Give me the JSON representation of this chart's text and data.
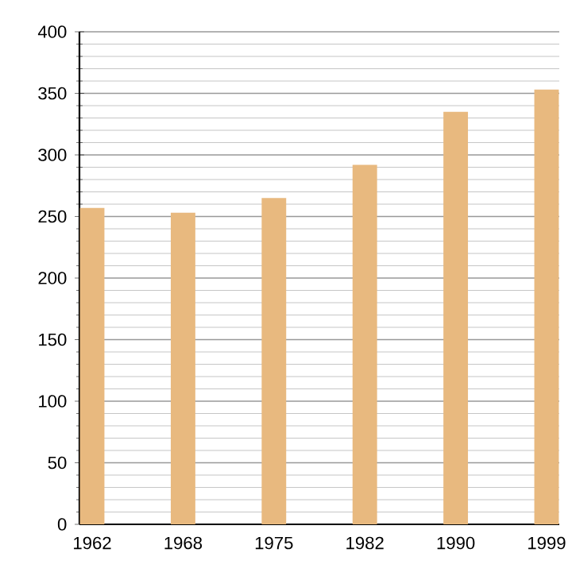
{
  "chart_data": {
    "type": "bar",
    "categories": [
      "1962",
      "1968",
      "1975",
      "1982",
      "1990",
      "1999"
    ],
    "values": [
      257,
      253,
      265,
      292,
      335,
      353
    ],
    "color": "#e8b97f",
    "ylim": [
      0,
      400
    ],
    "yticks": [
      0,
      50,
      100,
      150,
      200,
      250,
      300,
      350,
      400
    ],
    "grid": "y"
  }
}
